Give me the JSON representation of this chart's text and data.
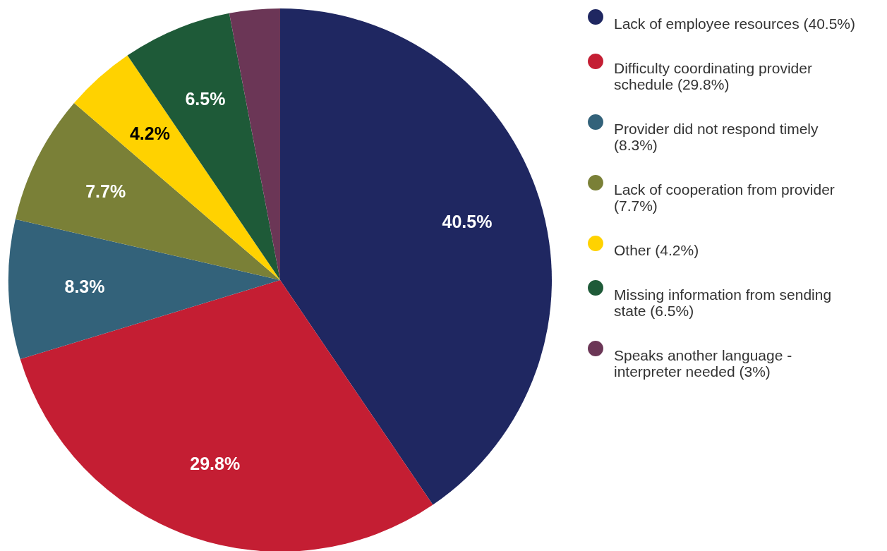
{
  "chart_data": {
    "type": "pie",
    "categories": [
      "Lack of employee resources (40.5%)",
      "Difficulty coordinating provider schedule (29.8%)",
      "Provider did not respond timely (8.3%)",
      "Lack of cooperation from provider (7.7%)",
      "Other (4.2%)",
      "Missing information from sending state (6.5%)",
      "Speaks another language - interpreter needed (3%)"
    ],
    "values": [
      40.5,
      29.8,
      8.3,
      7.7,
      4.2,
      6.5,
      3
    ],
    "colors": [
      "#1f2761",
      "#c41e33",
      "#33627a",
      "#7a8037",
      "#ffd200",
      "#1e5a38",
      "#6b3656"
    ],
    "value_labels": [
      "40.5%",
      "29.8%",
      "8.3%",
      "7.7%",
      "4.2%",
      "6.5%",
      null
    ],
    "legend": "right"
  }
}
